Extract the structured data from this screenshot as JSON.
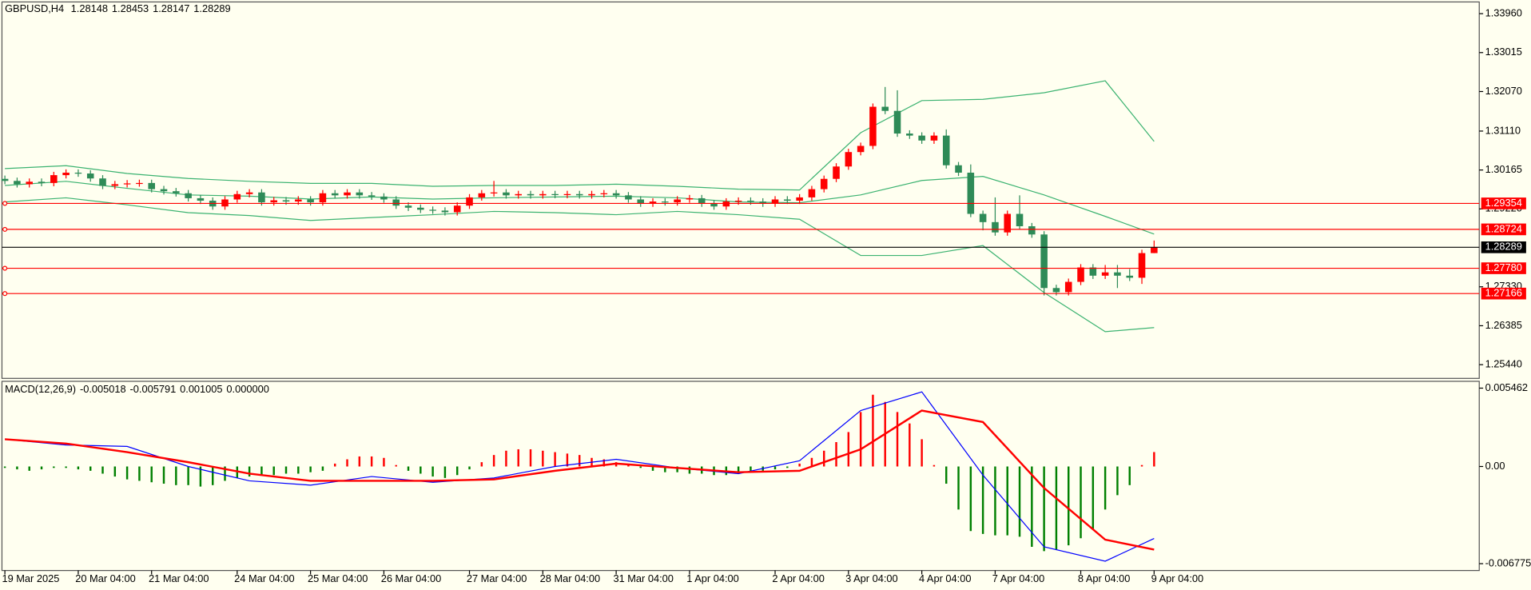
{
  "chart_data": [
    {
      "type": "candlestick",
      "symbol": "GBPUSD,H4",
      "categories": [
        "19 Mar 2025",
        null,
        null,
        null,
        null,
        null,
        "20 Mar 04:00",
        null,
        null,
        null,
        null,
        null,
        "21 Mar 04:00",
        null,
        null,
        null,
        null,
        null,
        null,
        "24 Mar 04:00",
        null,
        null,
        null,
        null,
        null,
        "25 Mar 04:00",
        null,
        null,
        null,
        null,
        null,
        "26 Mar 04:00",
        null,
        null,
        null,
        null,
        null,
        null,
        "27 Mar 04:00",
        null,
        null,
        null,
        null,
        null,
        "28 Mar 04:00",
        null,
        null,
        null,
        null,
        null,
        "31 Mar 04:00",
        null,
        null,
        null,
        null,
        null,
        "1 Apr 04:00",
        null,
        null,
        null,
        null,
        null,
        null,
        "2 Apr 04:00",
        null,
        null,
        null,
        null,
        null,
        "3 Apr 04:00",
        null,
        null,
        null,
        null,
        null,
        "4 Apr 04:00",
        null,
        null,
        null,
        null,
        null,
        "7 Apr 04:00",
        null,
        null,
        null,
        null,
        null,
        null,
        "8 Apr 04:00",
        null,
        null,
        null,
        null,
        null,
        "9 Apr 04:00"
      ],
      "open": [
        1.2995,
        1.299,
        1.2982,
        1.2988,
        1.2985,
        1.3004,
        1.301,
        1.3008,
        1.2996,
        1.2978,
        1.2982,
        1.2984,
        1.2985,
        1.297,
        1.2965,
        1.296,
        1.2948,
        1.2942,
        1.2928,
        1.2945,
        1.2958,
        1.2962,
        1.2938,
        1.2943,
        1.294,
        1.2945,
        1.2938,
        1.296,
        1.2955,
        1.2962,
        1.2955,
        1.2952,
        1.2945,
        1.293,
        1.2925,
        1.292,
        1.2918,
        1.2914,
        1.293,
        1.295,
        1.296,
        1.2962,
        1.2955,
        1.2958,
        1.2955,
        1.2958,
        1.2956,
        1.2958,
        1.2955,
        1.2958,
        1.296,
        1.2955,
        1.2945,
        1.2935,
        1.294,
        1.2938,
        1.2945,
        1.2948,
        1.2935,
        1.2928,
        1.294,
        1.2942,
        1.294,
        1.2935,
        1.2945,
        1.2942,
        1.295,
        1.297,
        1.2995,
        1.3025,
        1.306,
        1.3075,
        1.317,
        1.316,
        1.3105,
        1.31,
        1.3088,
        1.31,
        1.3028,
        1.301,
        1.291,
        1.289,
        1.2865,
        1.291,
        1.288,
        1.286,
        1.273,
        1.272,
        1.2745,
        1.278,
        1.276,
        1.2768,
        1.276,
        1.2755,
        1.28148
      ],
      "high": [
        1.3003,
        1.2998,
        1.2996,
        1.2996,
        1.3012,
        1.3018,
        1.3018,
        1.3016,
        1.3004,
        1.299,
        1.2992,
        1.2993,
        1.2993,
        1.2978,
        1.2973,
        1.2968,
        1.2956,
        1.295,
        1.2953,
        1.2966,
        1.297,
        1.297,
        1.2951,
        1.2951,
        1.2953,
        1.2953,
        1.2968,
        1.2968,
        1.297,
        1.297,
        1.2963,
        1.296,
        1.2953,
        1.2938,
        1.2933,
        1.2928,
        1.2926,
        1.2938,
        1.2958,
        1.2968,
        1.299,
        1.297,
        1.2966,
        1.2966,
        1.2966,
        1.2966,
        1.2966,
        1.2966,
        1.2966,
        1.2968,
        1.2968,
        1.2963,
        1.2953,
        1.2948,
        1.2948,
        1.2953,
        1.2956,
        1.2956,
        1.2943,
        1.2948,
        1.295,
        1.295,
        1.2948,
        1.2953,
        1.2953,
        1.2958,
        1.2978,
        1.3003,
        1.3033,
        1.3068,
        1.3083,
        1.3178,
        1.3218,
        1.321,
        1.3113,
        1.3108,
        1.3108,
        1.3115,
        1.3036,
        1.303,
        1.2918,
        1.295,
        1.2918,
        1.2955,
        1.2888,
        1.2868,
        1.2738,
        1.2753,
        1.2788,
        1.2788,
        1.2786,
        1.2786,
        1.2776,
        1.2823,
        1.28453
      ],
      "low": [
        1.2982,
        1.2974,
        1.2974,
        1.2977,
        1.2977,
        1.2996,
        1.3,
        1.2988,
        1.297,
        1.297,
        1.2974,
        1.2976,
        1.2962,
        1.2957,
        1.2952,
        1.294,
        1.2934,
        1.292,
        1.292,
        1.2937,
        1.295,
        1.293,
        1.293,
        1.2932,
        1.2932,
        1.293,
        1.293,
        1.2947,
        1.2947,
        1.2947,
        1.2944,
        1.2937,
        1.2922,
        1.2917,
        1.2912,
        1.291,
        1.2906,
        1.2906,
        1.2922,
        1.2942,
        1.2952,
        1.2947,
        1.2947,
        1.2947,
        1.2947,
        1.2948,
        1.2948,
        1.2947,
        1.2947,
        1.295,
        1.2947,
        1.2937,
        1.2927,
        1.2927,
        1.293,
        1.293,
        1.2937,
        1.2927,
        1.292,
        1.292,
        1.2932,
        1.2932,
        1.2927,
        1.2927,
        1.2934,
        1.2934,
        1.2942,
        1.2962,
        1.2987,
        1.3017,
        1.3052,
        1.3067,
        1.3152,
        1.3097,
        1.3092,
        1.308,
        1.308,
        1.302,
        1.3002,
        1.2902,
        1.287,
        1.2857,
        1.2857,
        1.2872,
        1.2852,
        1.2712,
        1.2712,
        1.2712,
        1.2737,
        1.2752,
        1.2752,
        1.273,
        1.2747,
        1.274,
        1.28147
      ],
      "close": [
        1.299,
        1.2982,
        1.2988,
        1.2985,
        1.3004,
        1.301,
        1.3008,
        1.2996,
        1.2978,
        1.2982,
        1.2984,
        1.2985,
        1.297,
        1.2965,
        1.296,
        1.2948,
        1.2942,
        1.2928,
        1.2945,
        1.2958,
        1.2962,
        1.2938,
        1.2943,
        1.294,
        1.2945,
        1.2938,
        1.296,
        1.2955,
        1.2962,
        1.2955,
        1.2952,
        1.2945,
        1.293,
        1.2925,
        1.292,
        1.2918,
        1.2914,
        1.293,
        1.295,
        1.296,
        1.2962,
        1.2955,
        1.2958,
        1.2955,
        1.2958,
        1.2956,
        1.2958,
        1.2955,
        1.2958,
        1.296,
        1.2955,
        1.2945,
        1.2935,
        1.294,
        1.2938,
        1.2945,
        1.2948,
        1.2935,
        1.2928,
        1.294,
        1.2942,
        1.294,
        1.2935,
        1.2945,
        1.2942,
        1.295,
        1.297,
        1.2995,
        1.3025,
        1.306,
        1.3075,
        1.317,
        1.316,
        1.3105,
        1.31,
        1.3088,
        1.31,
        1.3028,
        1.301,
        1.291,
        1.289,
        1.2865,
        1.291,
        1.288,
        1.286,
        1.273,
        1.272,
        1.2745,
        1.278,
        1.276,
        1.2768,
        1.276,
        1.2755,
        1.28148,
        1.28289
      ],
      "up_color": "#ff0000",
      "down_color": "#2e8b57",
      "ylim": [
        1.25107,
        1.34244
      ],
      "yticks": [
        {
          "value": 1.3396,
          "label": "1.33960"
        },
        1.33015,
        {
          "value": 1.3207,
          "label": "1.32070"
        },
        {
          "value": 1.3111,
          "label": "1.31110"
        },
        1.30165,
        {
          "value": 1.2922,
          "label": "1.29220"
        },
        {
          "value": 1.2733,
          "label": "1.27330"
        },
        1.26385,
        {
          "value": 1.2544,
          "label": "1.25440"
        }
      ],
      "bands": {
        "color": "#3cb371",
        "x": [
          0,
          5,
          10,
          15,
          20,
          25,
          30,
          35,
          40,
          45,
          50,
          55,
          60,
          65,
          70,
          75,
          80,
          85,
          90,
          94
        ],
        "upper": [
          1.302,
          1.3027,
          1.3008,
          1.2996,
          1.2989,
          1.2984,
          1.2984,
          1.2977,
          1.2979,
          1.2979,
          1.2982,
          1.2977,
          1.297,
          1.2968,
          1.3107,
          1.3185,
          1.3188,
          1.3204,
          1.3233,
          1.3086
        ],
        "middle": [
          1.2979,
          1.2989,
          1.2972,
          1.2956,
          1.2953,
          1.2946,
          1.2951,
          1.2946,
          1.2949,
          1.2951,
          1.2953,
          1.2949,
          1.2939,
          1.2937,
          1.2956,
          1.2991,
          1.3001,
          1.2956,
          1.2904,
          1.2861
        ],
        "lower": [
          1.2939,
          1.2949,
          1.2932,
          1.2913,
          1.2906,
          1.2894,
          1.2901,
          1.2908,
          1.2916,
          1.2913,
          1.2908,
          1.2916,
          1.2908,
          1.2897,
          1.2809,
          1.2809,
          1.2833,
          1.2719,
          1.2624,
          1.2634
        ]
      },
      "levels": {
        "color": "#ff0000",
        "values": [
          1.29354,
          1.28724,
          1.2778,
          1.27166
        ],
        "value_labels": [
          "1.29354",
          "1.28724",
          "1.27780",
          "1.27166"
        ]
      },
      "last_price_color": "#000000"
    },
    {
      "type": "macd",
      "title": "MACD(12,26,9)",
      "histogram": [
        -0.0001,
        -0.0002,
        -0.0003,
        -0.0002,
        -0.0001,
        -0.0001,
        -0.0002,
        -0.0003,
        -0.0005,
        -0.0007,
        -0.0009,
        -0.001,
        -0.0011,
        -0.0012,
        -0.0013,
        -0.0013,
        -0.0014,
        -0.0013,
        -0.001,
        -0.0008,
        -0.0007,
        -0.0006,
        -0.0006,
        -0.0005,
        -0.0005,
        -0.0004,
        -0.0003,
        0.0002,
        0.0005,
        0.0007,
        0.0007,
        0.0006,
        0.0001,
        -0.0003,
        -0.0005,
        -0.0007,
        -0.0008,
        -0.0006,
        -0.0002,
        0.0003,
        0.0008,
        0.0011,
        0.0012,
        0.0012,
        0.0011,
        0.001,
        0.0009,
        0.0008,
        0.0006,
        0.0005,
        0.0003,
        0.0001,
        -0.0001,
        -0.0003,
        -0.0004,
        -0.0004,
        -0.0005,
        -0.0005,
        -0.0006,
        -0.0006,
        -0.0005,
        -0.0004,
        -0.0003,
        -0.0002,
        -0.0001,
        0.0002,
        0.0006,
        0.0011,
        0.0017,
        0.0024,
        0.0038,
        0.005,
        0.0045,
        0.0038,
        0.003,
        0.0019,
        0.0001,
        -0.0012,
        -0.003,
        -0.0045,
        -0.0047,
        -0.0048,
        -0.0048,
        -0.0049,
        -0.0056,
        -0.0059,
        -0.0058,
        -0.0055,
        -0.005,
        -0.0044,
        -0.003,
        -0.002,
        -0.0013,
        0.0001,
        0.001005
      ],
      "x": [
        0,
        5,
        10,
        15,
        20,
        25,
        30,
        35,
        40,
        45,
        50,
        55,
        60,
        65,
        70,
        75,
        80,
        85,
        90,
        94
      ],
      "main": [
        0.0019,
        0.0015,
        0.0014,
        0.0,
        -0.001,
        -0.0013,
        -0.0007,
        -0.0011,
        -0.0008,
        0.0,
        0.0005,
        -0.0001,
        -0.0005,
        0.0004,
        0.0039,
        0.0052,
        -0.0006,
        -0.0056,
        -0.0066,
        -0.005018
      ],
      "signal": [
        0.0019,
        0.0016,
        0.001,
        0.0003,
        -0.0005,
        -0.001,
        -0.001,
        -0.001,
        -0.0009,
        -0.0003,
        0.0002,
        -0.0001,
        -0.0004,
        -0.0003,
        0.0012,
        0.0039,
        0.0031,
        -0.0015,
        -0.0051,
        -0.005791
      ],
      "extra_buffer": {
        "value": 0,
        "label": "0.000000"
      },
      "up_color": "#ff0000",
      "down_color": "#008000",
      "main_color": "#0000ff",
      "signal_color": "#ff0000",
      "ylim": [
        -0.007251,
        0.005938
      ],
      "yticks": [
        0.005462,
        {
          "value": 0,
          "label": "0.00"
        },
        -0.006775
      ]
    }
  ]
}
